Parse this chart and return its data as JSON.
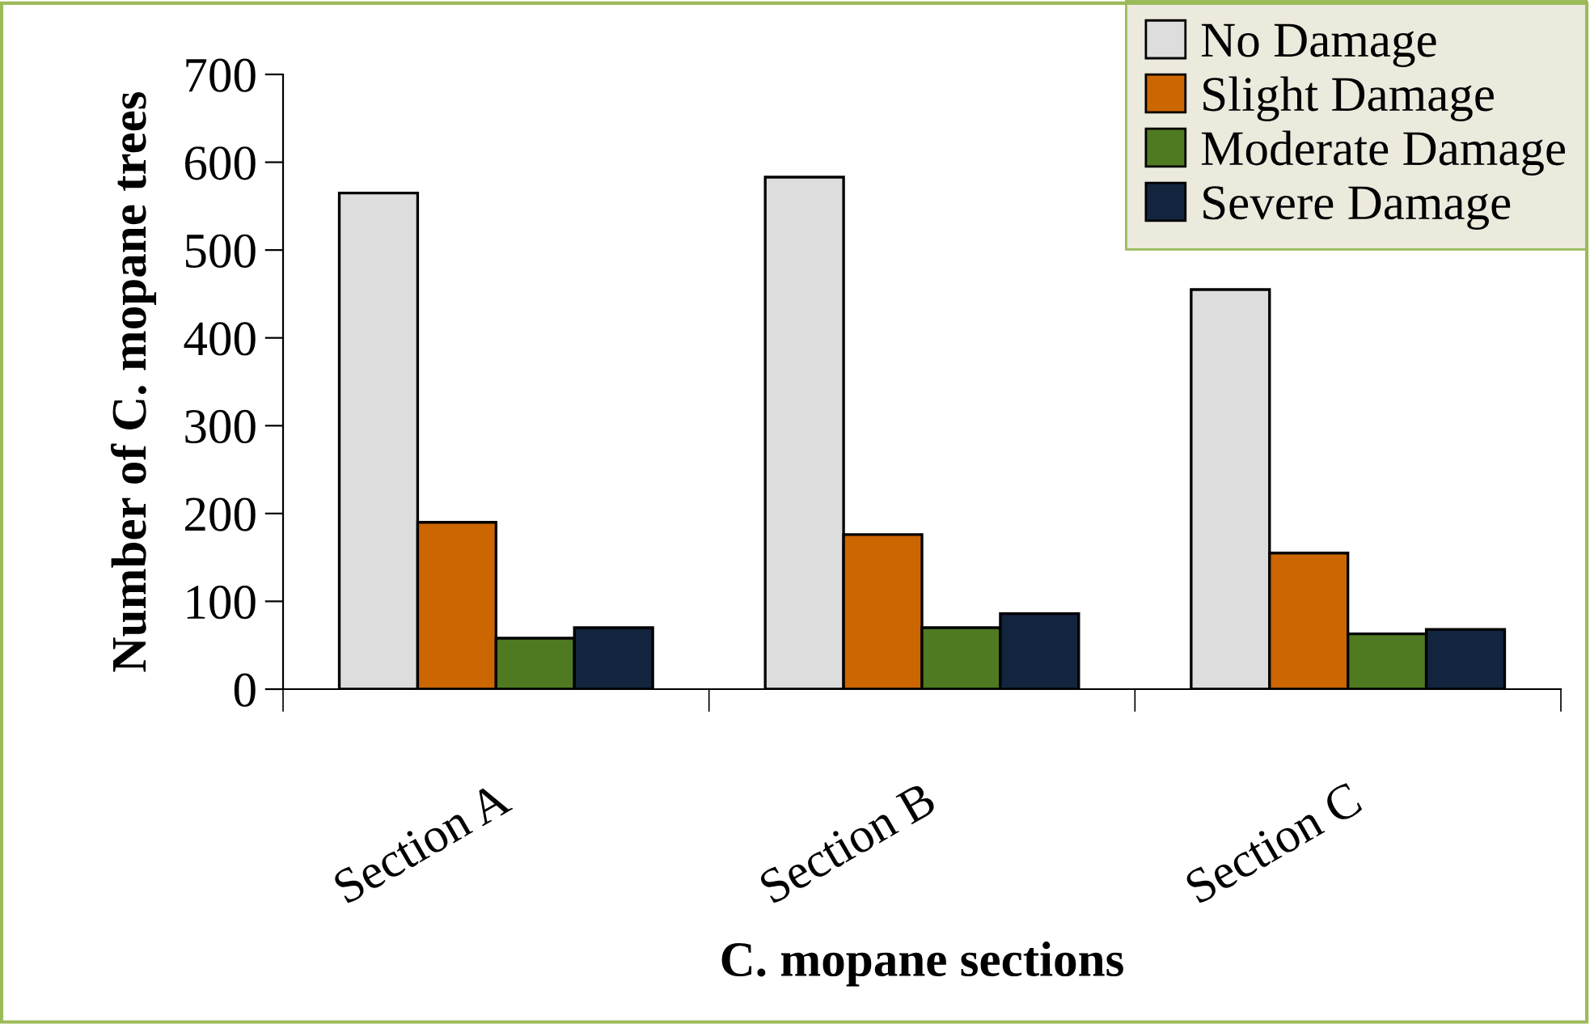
{
  "chart_data": {
    "type": "bar",
    "xlabel": "C. mopane sections",
    "ylabel": "Number of C. mopane trees",
    "categories": [
      "Section A",
      "Section B",
      "Section C"
    ],
    "series": [
      {
        "name": "No Damage",
        "color": "#dddddd",
        "values": [
          565,
          583,
          455
        ]
      },
      {
        "name": "Slight Damage",
        "color": "#cc6600",
        "values": [
          190,
          176,
          155
        ]
      },
      {
        "name": "Moderate Damage",
        "color": "#4f7a22",
        "values": [
          58,
          70,
          63
        ]
      },
      {
        "name": "Severe Damage",
        "color": "#12243e",
        "values": [
          70,
          86,
          68
        ]
      }
    ],
    "ylim": [
      0,
      700
    ],
    "yticks": [
      0,
      100,
      200,
      300,
      400,
      500,
      600,
      700
    ],
    "grid": false,
    "legend": "top right"
  }
}
